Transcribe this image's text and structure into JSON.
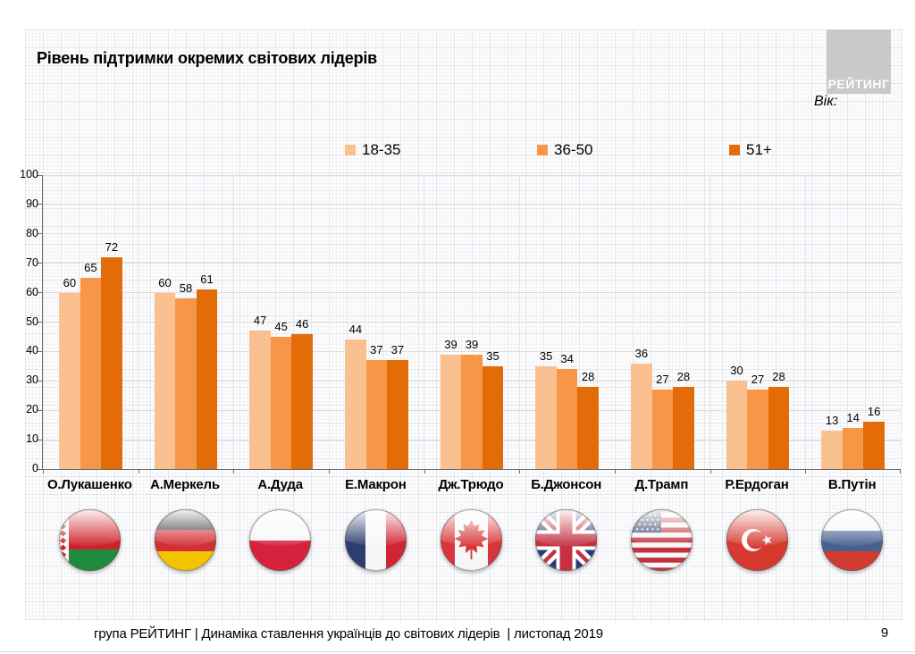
{
  "title": "Рівень підтримки окремих світових лідерів",
  "logo_text": "РЕЙТИНГ",
  "age_label": "Вік:",
  "legend": [
    {
      "label": "18-35",
      "color": "#FAC090"
    },
    {
      "label": "36-50",
      "color": "#F79646"
    },
    {
      "label": "51+",
      "color": "#E36C09"
    }
  ],
  "footer": {
    "text": "група РЕЙТИНГ | Динаміка ставлення українців до світових лідерів  | листопад 2019",
    "page": "9"
  },
  "chart_data": {
    "type": "bar",
    "title": "Рівень підтримки окремих світових лідерів",
    "categories": [
      "О.Лукашенко",
      "А.Меркель",
      "А.Дуда",
      "Е.Макрон",
      "Дж.Трюдо",
      "Б.Джонсон",
      "Д.Трамп",
      "Р.Ердоган",
      "В.Путін"
    ],
    "series": [
      {
        "name": "18-35",
        "color": "#FAC090",
        "values": [
          60,
          60,
          47,
          44,
          39,
          35,
          36,
          30,
          13
        ]
      },
      {
        "name": "36-50",
        "color": "#F79646",
        "values": [
          65,
          58,
          45,
          37,
          39,
          34,
          27,
          27,
          14
        ]
      },
      {
        "name": "51+",
        "color": "#E36C09",
        "values": [
          72,
          61,
          46,
          37,
          35,
          28,
          28,
          28,
          16
        ]
      }
    ],
    "xlabel": "",
    "ylabel": "",
    "ylim": [
      0,
      100
    ],
    "yticks": [
      0,
      10,
      20,
      30,
      40,
      50,
      60,
      70,
      80,
      90,
      100
    ],
    "grid": true,
    "legend_position": "top",
    "flags": [
      "belarus",
      "germany",
      "poland",
      "france",
      "canada",
      "uk",
      "usa",
      "turkey",
      "russia"
    ]
  }
}
